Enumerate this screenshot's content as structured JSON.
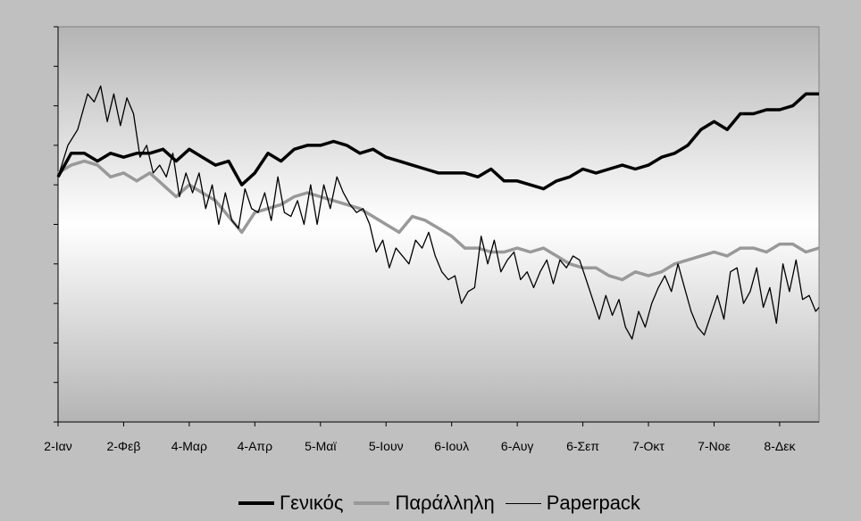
{
  "chart_data": {
    "type": "line",
    "x_tick_labels": [
      "2-Ιαν",
      "2-Φεβ",
      "4-Μαρ",
      "4-Απρ",
      "5-Μαϊ",
      "5-Ιουν",
      "6-Ιουλ",
      "6-Αυγ",
      "6-Σεπ",
      "7-Οκτ",
      "7-Νοε",
      "8-Δεκ"
    ],
    "x_range": [
      0,
      11.6
    ],
    "y_range": [
      0,
      10
    ],
    "y_tick_count": 10,
    "y_tick_labels_visible": false,
    "grid": false,
    "legend_position": "bottom",
    "series": [
      {
        "name": "Γενικός",
        "color": "#000000",
        "stroke": "thick",
        "points": [
          [
            0,
            6.2
          ],
          [
            0.1,
            6.5
          ],
          [
            0.2,
            6.8
          ],
          [
            0.4,
            6.8
          ],
          [
            0.6,
            6.6
          ],
          [
            0.8,
            6.8
          ],
          [
            1,
            6.7
          ],
          [
            1.2,
            6.8
          ],
          [
            1.4,
            6.8
          ],
          [
            1.6,
            6.9
          ],
          [
            1.8,
            6.6
          ],
          [
            2,
            6.9
          ],
          [
            2.2,
            6.7
          ],
          [
            2.4,
            6.5
          ],
          [
            2.6,
            6.6
          ],
          [
            2.8,
            6.0
          ],
          [
            3.0,
            6.3
          ],
          [
            3.2,
            6.8
          ],
          [
            3.4,
            6.6
          ],
          [
            3.6,
            6.9
          ],
          [
            3.8,
            7.0
          ],
          [
            4.0,
            7.0
          ],
          [
            4.2,
            7.1
          ],
          [
            4.4,
            7.0
          ],
          [
            4.6,
            6.8
          ],
          [
            4.8,
            6.9
          ],
          [
            5.0,
            6.7
          ],
          [
            5.2,
            6.6
          ],
          [
            5.4,
            6.5
          ],
          [
            5.6,
            6.4
          ],
          [
            5.8,
            6.3
          ],
          [
            6.0,
            6.3
          ],
          [
            6.2,
            6.3
          ],
          [
            6.4,
            6.2
          ],
          [
            6.6,
            6.4
          ],
          [
            6.8,
            6.1
          ],
          [
            7.0,
            6.1
          ],
          [
            7.2,
            6.0
          ],
          [
            7.4,
            5.9
          ],
          [
            7.6,
            6.1
          ],
          [
            7.8,
            6.2
          ],
          [
            8.0,
            6.4
          ],
          [
            8.2,
            6.3
          ],
          [
            8.4,
            6.4
          ],
          [
            8.6,
            6.5
          ],
          [
            8.8,
            6.4
          ],
          [
            9.0,
            6.5
          ],
          [
            9.2,
            6.7
          ],
          [
            9.4,
            6.8
          ],
          [
            9.6,
            7.0
          ],
          [
            9.8,
            7.4
          ],
          [
            10.0,
            7.6
          ],
          [
            10.2,
            7.4
          ],
          [
            10.4,
            7.8
          ],
          [
            10.6,
            7.8
          ],
          [
            10.8,
            7.9
          ],
          [
            11.0,
            7.9
          ],
          [
            11.2,
            8.0
          ],
          [
            11.4,
            8.3
          ],
          [
            11.6,
            8.3
          ]
        ]
      },
      {
        "name": "Παράλληλη",
        "color": "#999999",
        "stroke": "thick",
        "points": [
          [
            0,
            6.3
          ],
          [
            0.2,
            6.5
          ],
          [
            0.4,
            6.6
          ],
          [
            0.6,
            6.5
          ],
          [
            0.8,
            6.2
          ],
          [
            1.0,
            6.3
          ],
          [
            1.2,
            6.1
          ],
          [
            1.4,
            6.3
          ],
          [
            1.6,
            6.0
          ],
          [
            1.8,
            5.7
          ],
          [
            2.0,
            6.0
          ],
          [
            2.2,
            5.8
          ],
          [
            2.4,
            5.6
          ],
          [
            2.6,
            5.2
          ],
          [
            2.8,
            4.8
          ],
          [
            3.0,
            5.3
          ],
          [
            3.2,
            5.4
          ],
          [
            3.4,
            5.5
          ],
          [
            3.6,
            5.7
          ],
          [
            3.8,
            5.8
          ],
          [
            4.0,
            5.7
          ],
          [
            4.2,
            5.6
          ],
          [
            4.4,
            5.5
          ],
          [
            4.6,
            5.4
          ],
          [
            4.8,
            5.2
          ],
          [
            5.0,
            5.0
          ],
          [
            5.2,
            4.8
          ],
          [
            5.4,
            5.2
          ],
          [
            5.6,
            5.1
          ],
          [
            5.8,
            4.9
          ],
          [
            6.0,
            4.7
          ],
          [
            6.2,
            4.4
          ],
          [
            6.4,
            4.4
          ],
          [
            6.6,
            4.3
          ],
          [
            6.8,
            4.3
          ],
          [
            7.0,
            4.4
          ],
          [
            7.2,
            4.3
          ],
          [
            7.4,
            4.4
          ],
          [
            7.6,
            4.2
          ],
          [
            7.8,
            4.0
          ],
          [
            8.0,
            3.9
          ],
          [
            8.2,
            3.9
          ],
          [
            8.4,
            3.7
          ],
          [
            8.6,
            3.6
          ],
          [
            8.8,
            3.8
          ],
          [
            9.0,
            3.7
          ],
          [
            9.2,
            3.8
          ],
          [
            9.4,
            4.0
          ],
          [
            9.6,
            4.1
          ],
          [
            9.8,
            4.2
          ],
          [
            10.0,
            4.3
          ],
          [
            10.2,
            4.2
          ],
          [
            10.4,
            4.4
          ],
          [
            10.6,
            4.4
          ],
          [
            10.8,
            4.3
          ],
          [
            11.0,
            4.5
          ],
          [
            11.2,
            4.5
          ],
          [
            11.4,
            4.3
          ],
          [
            11.6,
            4.4
          ]
        ]
      },
      {
        "name": "Paperpack",
        "color": "#000000",
        "stroke": "thin",
        "points": [
          [
            0,
            6.2
          ],
          [
            0.15,
            7.0
          ],
          [
            0.3,
            7.4
          ],
          [
            0.45,
            8.3
          ],
          [
            0.55,
            8.1
          ],
          [
            0.65,
            8.5
          ],
          [
            0.75,
            7.6
          ],
          [
            0.85,
            8.3
          ],
          [
            0.95,
            7.5
          ],
          [
            1.05,
            8.2
          ],
          [
            1.15,
            7.8
          ],
          [
            1.25,
            6.7
          ],
          [
            1.35,
            7.0
          ],
          [
            1.45,
            6.3
          ],
          [
            1.55,
            6.5
          ],
          [
            1.65,
            6.2
          ],
          [
            1.75,
            6.8
          ],
          [
            1.85,
            5.7
          ],
          [
            1.95,
            6.3
          ],
          [
            2.05,
            5.8
          ],
          [
            2.15,
            6.3
          ],
          [
            2.25,
            5.4
          ],
          [
            2.35,
            6.0
          ],
          [
            2.45,
            5.0
          ],
          [
            2.55,
            5.8
          ],
          [
            2.65,
            5.1
          ],
          [
            2.75,
            4.9
          ],
          [
            2.85,
            5.9
          ],
          [
            2.95,
            5.4
          ],
          [
            3.05,
            5.3
          ],
          [
            3.15,
            5.8
          ],
          [
            3.25,
            5.1
          ],
          [
            3.35,
            6.2
          ],
          [
            3.45,
            5.3
          ],
          [
            3.55,
            5.2
          ],
          [
            3.65,
            5.6
          ],
          [
            3.75,
            5.0
          ],
          [
            3.85,
            6.0
          ],
          [
            3.95,
            5.0
          ],
          [
            4.05,
            6.0
          ],
          [
            4.15,
            5.4
          ],
          [
            4.25,
            6.2
          ],
          [
            4.35,
            5.8
          ],
          [
            4.45,
            5.5
          ],
          [
            4.55,
            5.3
          ],
          [
            4.65,
            5.4
          ],
          [
            4.75,
            5.0
          ],
          [
            4.85,
            4.3
          ],
          [
            4.95,
            4.6
          ],
          [
            5.05,
            3.9
          ],
          [
            5.15,
            4.4
          ],
          [
            5.25,
            4.2
          ],
          [
            5.35,
            4.0
          ],
          [
            5.45,
            4.6
          ],
          [
            5.55,
            4.4
          ],
          [
            5.65,
            4.8
          ],
          [
            5.75,
            4.2
          ],
          [
            5.85,
            3.8
          ],
          [
            5.95,
            3.6
          ],
          [
            6.05,
            3.7
          ],
          [
            6.15,
            3.0
          ],
          [
            6.25,
            3.3
          ],
          [
            6.35,
            3.4
          ],
          [
            6.45,
            4.7
          ],
          [
            6.55,
            4.0
          ],
          [
            6.65,
            4.6
          ],
          [
            6.75,
            3.8
          ],
          [
            6.85,
            4.1
          ],
          [
            6.95,
            4.3
          ],
          [
            7.05,
            3.6
          ],
          [
            7.15,
            3.8
          ],
          [
            7.25,
            3.4
          ],
          [
            7.35,
            3.8
          ],
          [
            7.45,
            4.1
          ],
          [
            7.55,
            3.5
          ],
          [
            7.65,
            4.1
          ],
          [
            7.75,
            3.9
          ],
          [
            7.85,
            4.2
          ],
          [
            7.95,
            4.1
          ],
          [
            8.05,
            3.6
          ],
          [
            8.15,
            3.1
          ],
          [
            8.25,
            2.6
          ],
          [
            8.35,
            3.2
          ],
          [
            8.45,
            2.7
          ],
          [
            8.55,
            3.1
          ],
          [
            8.65,
            2.4
          ],
          [
            8.75,
            2.1
          ],
          [
            8.85,
            2.8
          ],
          [
            8.95,
            2.4
          ],
          [
            9.05,
            3.0
          ],
          [
            9.15,
            3.4
          ],
          [
            9.25,
            3.7
          ],
          [
            9.35,
            3.3
          ],
          [
            9.45,
            4.0
          ],
          [
            9.55,
            3.4
          ],
          [
            9.65,
            2.8
          ],
          [
            9.75,
            2.4
          ],
          [
            9.85,
            2.2
          ],
          [
            9.95,
            2.7
          ],
          [
            10.05,
            3.2
          ],
          [
            10.15,
            2.6
          ],
          [
            10.25,
            3.8
          ],
          [
            10.35,
            3.9
          ],
          [
            10.45,
            3.0
          ],
          [
            10.55,
            3.3
          ],
          [
            10.65,
            3.9
          ],
          [
            10.75,
            2.9
          ],
          [
            10.85,
            3.4
          ],
          [
            10.95,
            2.5
          ],
          [
            11.05,
            4.0
          ],
          [
            11.15,
            3.3
          ],
          [
            11.25,
            4.1
          ],
          [
            11.35,
            3.1
          ],
          [
            11.45,
            3.2
          ],
          [
            11.55,
            2.8
          ],
          [
            11.6,
            2.9
          ]
        ]
      }
    ]
  }
}
